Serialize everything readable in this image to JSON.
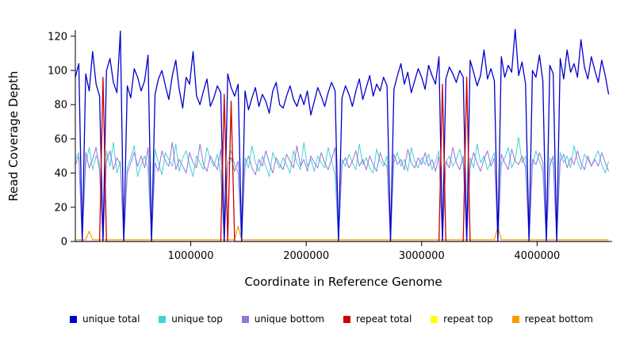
{
  "figure": {
    "ylabel": "Read Coverage Depth",
    "xlabel": "Coordinate in Reference Genome",
    "y_ticks": [
      0,
      20,
      40,
      60,
      80,
      100,
      120
    ],
    "x_ticks": [
      1000000,
      2000000,
      3000000,
      4000000
    ]
  },
  "legend": [
    {
      "label": "unique total",
      "color": "#0000CC"
    },
    {
      "label": "unique top",
      "color": "#45D1D1"
    },
    {
      "label": "unique bottom",
      "color": "#9673DB"
    },
    {
      "label": "repeat total",
      "color": "#CC0000"
    },
    {
      "label": "repeat top",
      "color": "#FFFF00"
    },
    {
      "label": "repeat bottom",
      "color": "#FF9900"
    }
  ],
  "chart_data": {
    "type": "line",
    "title": "",
    "xlabel": "Coordinate in Reference Genome",
    "ylabel": "Read Coverage Depth",
    "xlim": [
      0,
      4650000
    ],
    "ylim": [
      0,
      125
    ],
    "grid": false,
    "legend_position": "bottom",
    "x_start": 0,
    "x_step": 30000,
    "n_points": 155,
    "series": [
      {
        "name": "unique total",
        "color": "#0000CC",
        "values": [
          96,
          104,
          0,
          98,
          88,
          111,
          92,
          85,
          0,
          100,
          107,
          93,
          87,
          123,
          0,
          91,
          84,
          101,
          96,
          88,
          94,
          109,
          0,
          86,
          95,
          100,
          91,
          83,
          97,
          106,
          89,
          78,
          96,
          92,
          111,
          85,
          80,
          88,
          95,
          79,
          84,
          91,
          87,
          0,
          98,
          90,
          85,
          92,
          0,
          88,
          77,
          84,
          90,
          79,
          86,
          82,
          75,
          88,
          93,
          80,
          78,
          85,
          91,
          83,
          79,
          86,
          80,
          88,
          74,
          82,
          90,
          85,
          79,
          87,
          93,
          88,
          0,
          84,
          91,
          86,
          79,
          88,
          95,
          83,
          90,
          97,
          85,
          92,
          88,
          96,
          91,
          0,
          89,
          97,
          104,
          92,
          99,
          87,
          94,
          101,
          96,
          89,
          103,
          97,
          92,
          108,
          0,
          95,
          102,
          98,
          93,
          100,
          96,
          0,
          106,
          99,
          91,
          97,
          112,
          95,
          101,
          94,
          0,
          108,
          96,
          103,
          99,
          124,
          97,
          105,
          92,
          0,
          100,
          96,
          109,
          94,
          0,
          103,
          98,
          0,
          107,
          95,
          112,
          99,
          104,
          96,
          118,
          102,
          95,
          108,
          100,
          93,
          106,
          97,
          86
        ]
      },
      {
        "name": "unique top",
        "color": "#45D1D1",
        "values": [
          48,
          52,
          0,
          45,
          55,
          42,
          50,
          46,
          0,
          53,
          44,
          58,
          40,
          47,
          0,
          43,
          49,
          56,
          38,
          45,
          50,
          42,
          0,
          54,
          46,
          39,
          52,
          48,
          44,
          57,
          41,
          49,
          53,
          45,
          38,
          50,
          46,
          42,
          55,
          48,
          44,
          51,
          39,
          0,
          47,
          53,
          45,
          40,
          0,
          49,
          43,
          56,
          46,
          41,
          50,
          44,
          38,
          52,
          47,
          43,
          49,
          45,
          40,
          53,
          46,
          42,
          58,
          44,
          48,
          41,
          50,
          46,
          43,
          55,
          47,
          39,
          0,
          48,
          44,
          51,
          46,
          42,
          57,
          45,
          49,
          43,
          40,
          54,
          47,
          44,
          50,
          0,
          46,
          52,
          44,
          48,
          41,
          55,
          47,
          43,
          49,
          45,
          51,
          42,
          47,
          53,
          0,
          46,
          50,
          44,
          48,
          54,
          45,
          0,
          49,
          43,
          57,
          46,
          50,
          42,
          47,
          52,
          0,
          45,
          49,
          55,
          43,
          48,
          61,
          46,
          50,
          0,
          44,
          53,
          47,
          41,
          0,
          49,
          45,
          0,
          52,
          46,
          50,
          43,
          56,
          47,
          42,
          51,
          48,
          44,
          49,
          53,
          45,
          40,
          47
        ]
      },
      {
        "name": "unique bottom",
        "color": "#9673DB",
        "values": [
          45,
          50,
          0,
          52,
          43,
          48,
          55,
          41,
          0,
          47,
          53,
          42,
          49,
          45,
          0,
          40,
          46,
          52,
          44,
          50,
          43,
          55,
          0,
          46,
          41,
          53,
          47,
          44,
          58,
          42,
          48,
          44,
          40,
          52,
          46,
          43,
          57,
          45,
          41,
          50,
          46,
          42,
          54,
          0,
          45,
          49,
          41,
          47,
          0,
          44,
          50,
          43,
          39,
          48,
          44,
          53,
          46,
          40,
          49,
          45,
          42,
          51,
          47,
          43,
          56,
          44,
          48,
          41,
          50,
          46,
          43,
          52,
          46,
          42,
          48,
          55,
          0,
          45,
          49,
          43,
          47,
          53,
          44,
          48,
          42,
          50,
          45,
          41,
          52,
          46,
          44,
          0,
          51,
          45,
          48,
          42,
          54,
          46,
          43,
          49,
          45,
          52,
          44,
          48,
          41,
          50,
          0,
          47,
          43,
          55,
          46,
          42,
          50,
          0,
          44,
          52,
          46,
          41,
          48,
          53,
          44,
          49,
          0,
          51,
          46,
          42,
          54,
          47,
          45,
          50,
          43,
          0,
          48,
          45,
          52,
          46,
          0,
          44,
          50,
          0,
          47,
          51,
          43,
          49,
          45,
          53,
          46,
          42,
          50,
          44,
          48,
          44,
          52,
          46,
          41
        ]
      },
      {
        "name": "repeat total",
        "color": "#CC0000",
        "default": 0,
        "spikes": {
          "8": 96,
          "43": 86,
          "45": 82,
          "106": 92,
          "113": 96
        }
      },
      {
        "name": "repeat top",
        "color": "#FFFF00",
        "default": 0,
        "spikes": {}
      },
      {
        "name": "repeat bottom",
        "color": "#FF9900",
        "default": 1,
        "spikes": {
          "4": 6,
          "47": 9,
          "122": 9
        }
      }
    ]
  }
}
